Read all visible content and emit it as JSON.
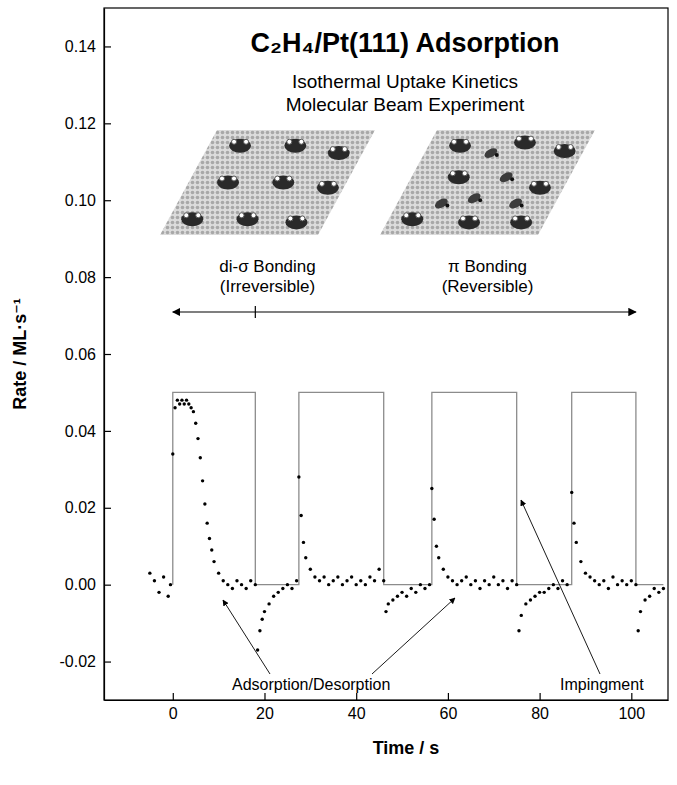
{
  "chart_data": {
    "type": "scatter",
    "title": "C₂H₄/Pt(111) Adsorption",
    "subtitle": [
      "Isothermal Uptake Kinetics",
      "Molecular Beam Experiment"
    ],
    "annotations": [
      {
        "text": [
          "di-σ Bonding",
          "(Irreversible)"
        ]
      },
      {
        "text": [
          "π Bonding",
          "(Reversible)"
        ]
      }
    ],
    "x_label": "Time / s",
    "y_label": "Rate / ML·s⁻¹",
    "xlim": [
      -15,
      108
    ],
    "xticks": [
      0,
      20,
      40,
      60,
      80,
      100
    ],
    "ylim": [
      -0.03,
      0.15
    ],
    "yticks": [
      -0.02,
      {
        "value": 0,
        "label": "0.00"
      },
      0.02,
      0.04,
      0.06,
      0.08,
      {
        "value": 0.1,
        "label": "0.10"
      },
      0.12,
      0.14
    ],
    "grid": false,
    "series": [
      {
        "name": "Adsorption/Desorption",
        "type": "scatter",
        "color": "#000000",
        "marker": "circle",
        "x": [
          -5,
          -4,
          -3,
          -2,
          -1,
          -0.5,
          0,
          0.5,
          1,
          1.5,
          2,
          2.5,
          3,
          3.5,
          4,
          4.5,
          5,
          5.5,
          6,
          6.5,
          7,
          7.5,
          8,
          8.5,
          9,
          10,
          11,
          12,
          13,
          14,
          15,
          16,
          17,
          18,
          18.5,
          19,
          19.5,
          20,
          21,
          22,
          23,
          24,
          25,
          26,
          27,
          27.5,
          28,
          28.5,
          29,
          30,
          31,
          32,
          33,
          34,
          35,
          36,
          37,
          38,
          39,
          40,
          41,
          42,
          43,
          44,
          45,
          46,
          46.5,
          47,
          48,
          49,
          50,
          51,
          52,
          53,
          54,
          55,
          56,
          56.5,
          57,
          57.5,
          58,
          59,
          60,
          61,
          62,
          63,
          64,
          65,
          66,
          67,
          68,
          69,
          70,
          71,
          72,
          73,
          74,
          75,
          75.5,
          76,
          77,
          78,
          79,
          80,
          81,
          82,
          83,
          84,
          85,
          86,
          87,
          87.5,
          88,
          89,
          90,
          91,
          92,
          93,
          94,
          95,
          96,
          97,
          98,
          99,
          100,
          101,
          101.5,
          102,
          103,
          104,
          105,
          106,
          107
        ],
        "values": [
          0.003,
          0.001,
          -0.002,
          0.002,
          -0.003,
          0,
          0.034,
          0.046,
          0.048,
          0.047,
          0.048,
          0.047,
          0.048,
          0.047,
          0.046,
          0.045,
          0.042,
          0.038,
          0.033,
          0.027,
          0.021,
          0.016,
          0.012,
          0.009,
          0.006,
          0.003,
          0.001,
          0,
          -0.001,
          0.001,
          0,
          -0.001,
          0.001,
          0,
          -0.017,
          -0.012,
          -0.009,
          -0.007,
          -0.005,
          -0.003,
          -0.002,
          -0.001,
          0,
          -0.001,
          0.001,
          0.028,
          0.018,
          0.011,
          0.007,
          0.004,
          0.002,
          0.001,
          0.002,
          0,
          0.001,
          0.002,
          0,
          0.001,
          0.002,
          0,
          0.001,
          0,
          0.002,
          0.001,
          0.004,
          0.001,
          -0.007,
          -0.005,
          -0.004,
          -0.003,
          -0.002,
          -0.003,
          -0.001,
          -0.002,
          0,
          -0.001,
          0,
          0.025,
          0.017,
          0.01,
          0.007,
          0.004,
          0.002,
          0.001,
          0,
          0.001,
          0.002,
          0,
          0.001,
          -0.001,
          0.001,
          0,
          0.002,
          0,
          0.001,
          -0.001,
          0.001,
          0,
          -0.012,
          -0.008,
          -0.005,
          -0.004,
          -0.003,
          -0.002,
          -0.002,
          -0.001,
          0,
          -0.001,
          0.001,
          0,
          0.024,
          0.016,
          0.011,
          0.006,
          0.003,
          0.002,
          0.001,
          0,
          0.001,
          -0.001,
          0.002,
          0,
          0.001,
          0,
          0.001,
          0,
          -0.012,
          -0.007,
          -0.004,
          -0.003,
          -0.001,
          -0.002,
          -0.001
        ]
      },
      {
        "name": "Impingment",
        "type": "line",
        "color": "#8c8c8c",
        "line_style": "solid",
        "x": [
          0,
          0,
          18,
          18,
          27.5,
          27.5,
          46,
          46,
          56.5,
          56.5,
          75,
          75,
          87,
          87,
          101,
          101,
          107
        ],
        "values": [
          0,
          0.05,
          0.05,
          0,
          0,
          0.05,
          0.05,
          0,
          0,
          0.05,
          0.05,
          0,
          0,
          0.05,
          0.05,
          0,
          0
        ]
      }
    ]
  }
}
